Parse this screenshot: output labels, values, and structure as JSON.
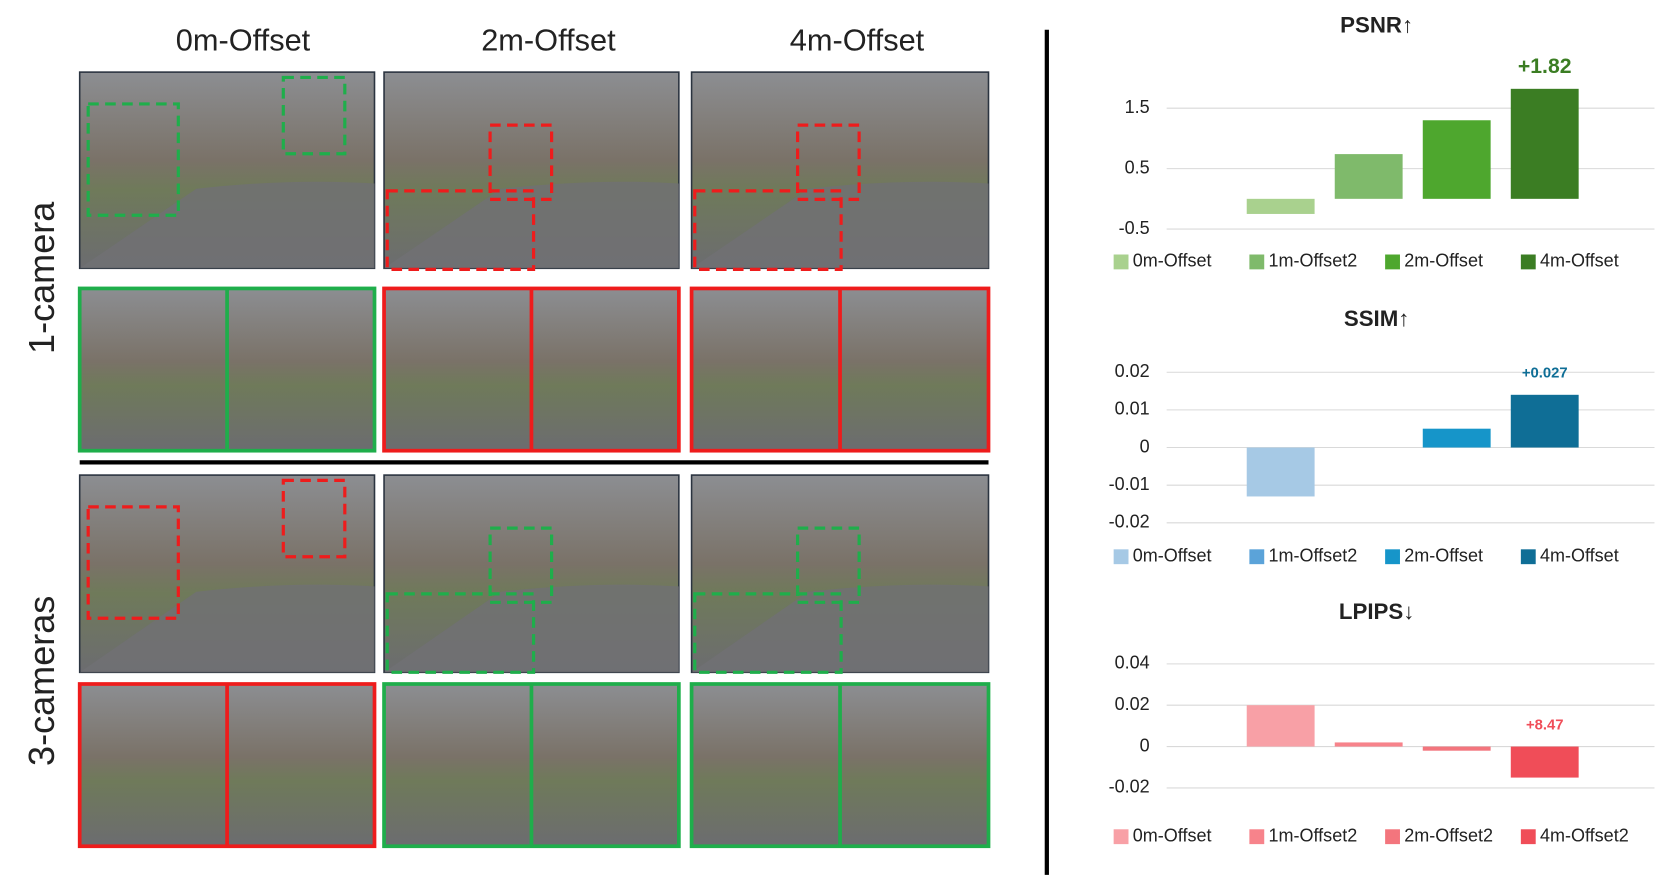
{
  "image_grid": {
    "column_labels": [
      "0m-Offset",
      "2m-Offset",
      "4m-Offset"
    ],
    "row_labels": [
      "1-camera",
      "3-cameras"
    ]
  },
  "chart_data": [
    {
      "type": "bar",
      "title": "PSNR↑",
      "annotation": "+1.82",
      "categories": [
        "0m-Offset",
        "1m-Offset2",
        "2m-Offset",
        "4m-Offset"
      ],
      "values": [
        -0.25,
        0.74,
        1.3,
        1.82
      ],
      "colors": [
        "#a9d18e",
        "#7fba6b",
        "#4ea72e",
        "#3b7d23"
      ],
      "ylim": [
        -0.5,
        2.0
      ],
      "yticks": [
        -0.5,
        0.5,
        1.5
      ],
      "grid": true,
      "legend": "bottom"
    },
    {
      "type": "bar",
      "title": "SSIM↑",
      "annotation": "+0.027",
      "categories": [
        "0m-Offset",
        "1m-Offset2",
        "2m-Offset",
        "4m-Offset"
      ],
      "values": [
        -0.013,
        0,
        0.005,
        0.014
      ],
      "colors": [
        "#a6c9e5",
        "#5ba3d9",
        "#1695c9",
        "#0f6e96"
      ],
      "ylim": [
        -0.02,
        0.02
      ],
      "yticks": [
        -0.02,
        -0.01,
        0,
        0.01,
        0.02
      ],
      "grid": true,
      "legend": "bottom"
    },
    {
      "type": "bar",
      "title": "LPIPS↓",
      "annotation": "+8.47",
      "categories": [
        "0m-Offset",
        "1m-Offset2",
        "2m-Offset2",
        "4m-Offset2"
      ],
      "values": [
        0.02,
        0.002,
        -0.002,
        -0.015
      ],
      "colors": [
        "#f8a0a6",
        "#f7838b",
        "#f3757d",
        "#f04d58"
      ],
      "ylim": [
        -0.02,
        0.04
      ],
      "yticks": [
        -0.02,
        0,
        0.02,
        0.04
      ],
      "grid": true,
      "legend": "bottom"
    }
  ]
}
